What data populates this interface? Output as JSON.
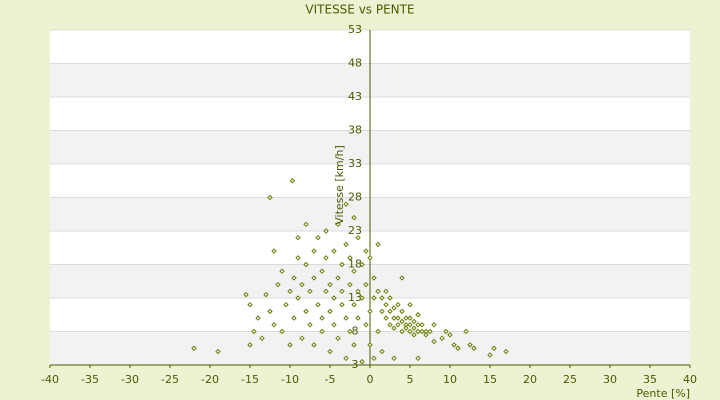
{
  "chart_data": {
    "type": "scatter",
    "title": "VITESSE vs PENTE",
    "xlabel": "Pente [%]",
    "ylabel": "Vitesse [km/h]",
    "color": "#6b7a00",
    "xlim": [
      -40,
      40
    ],
    "xticks": [
      -40,
      -35,
      -30,
      -25,
      -20,
      -15,
      -10,
      -5,
      0,
      5,
      10,
      15,
      20,
      25,
      30,
      35,
      40
    ],
    "ylim": [
      3,
      53
    ],
    "yticks": [
      3,
      8,
      13,
      18,
      23,
      28,
      33,
      38,
      43,
      48,
      53
    ],
    "grid": true,
    "x": [
      -22,
      -19,
      -15.5,
      -15,
      -15,
      -14.5,
      -14,
      -13.5,
      -13,
      -12.5,
      -12.5,
      -12,
      -12,
      -11.5,
      -11,
      -11,
      -10.5,
      -10,
      -10,
      -9.7,
      -9.5,
      -9.5,
      -9,
      -9,
      -9,
      -8.5,
      -8.5,
      -8,
      -8,
      -8,
      -7.5,
      -7.5,
      -7,
      -7,
      -7,
      -6.5,
      -6.5,
      -6,
      -6,
      -6,
      -5.5,
      -5.5,
      -5.5,
      -5,
      -5,
      -5,
      -4.5,
      -4.5,
      -4.5,
      -4,
      -4,
      -4,
      -3.5,
      -3.5,
      -3.5,
      -3,
      -3,
      -3,
      -3,
      -2.5,
      -2.5,
      -2.5,
      -2,
      -2,
      -2,
      -2,
      -1.5,
      -1.5,
      -1.5,
      -1,
      -1,
      -1,
      -0.5,
      -0.5,
      -0.5,
      0,
      0,
      0,
      0.5,
      0.5,
      0.5,
      1,
      1,
      1,
      1.5,
      1.5,
      1.5,
      2,
      2,
      2,
      2.5,
      2.5,
      2.5,
      3,
      3,
      3,
      3,
      3.5,
      3.5,
      3.5,
      4,
      4,
      4,
      4,
      4.5,
      4.5,
      4.5,
      5,
      5,
      5,
      5,
      5.5,
      5.5,
      5.5,
      6,
      6,
      6,
      6,
      6.5,
      6.5,
      7,
      7,
      7.5,
      8,
      8,
      9,
      9.5,
      10,
      10.5,
      11,
      12,
      12.5,
      13,
      15,
      15.5,
      17
    ],
    "values": [
      5.5,
      5,
      13.5,
      12,
      6,
      8,
      10,
      7,
      13.5,
      28,
      11,
      9,
      20,
      15,
      8,
      17,
      12,
      14,
      6,
      30.5,
      16,
      10,
      19,
      22,
      13,
      7,
      15,
      11,
      18,
      24,
      9,
      14,
      20,
      16,
      6,
      12,
      22,
      10,
      17,
      8,
      14,
      19,
      23,
      15,
      11,
      5,
      13,
      20,
      9,
      16,
      24,
      7,
      12,
      18,
      14,
      27,
      10,
      21,
      4,
      15,
      8,
      19,
      12,
      25,
      17,
      6,
      14,
      22,
      10,
      18,
      13,
      3.5,
      20,
      9,
      15,
      19,
      11,
      6,
      13,
      16,
      4,
      14,
      8,
      21,
      13,
      11,
      5,
      12,
      10,
      14,
      11,
      9,
      13,
      10,
      11.5,
      8.5,
      4,
      10,
      9,
      12,
      9.5,
      8,
      11,
      16,
      9,
      10,
      8.5,
      9,
      8,
      10,
      12,
      8.5,
      9.5,
      7.5,
      8,
      9,
      10.5,
      4,
      8,
      9,
      8,
      7.5,
      8,
      9,
      6.5,
      7,
      8,
      7.5,
      6,
      5.5,
      8,
      6,
      5.5,
      4.5,
      5.5,
      5
    ]
  }
}
